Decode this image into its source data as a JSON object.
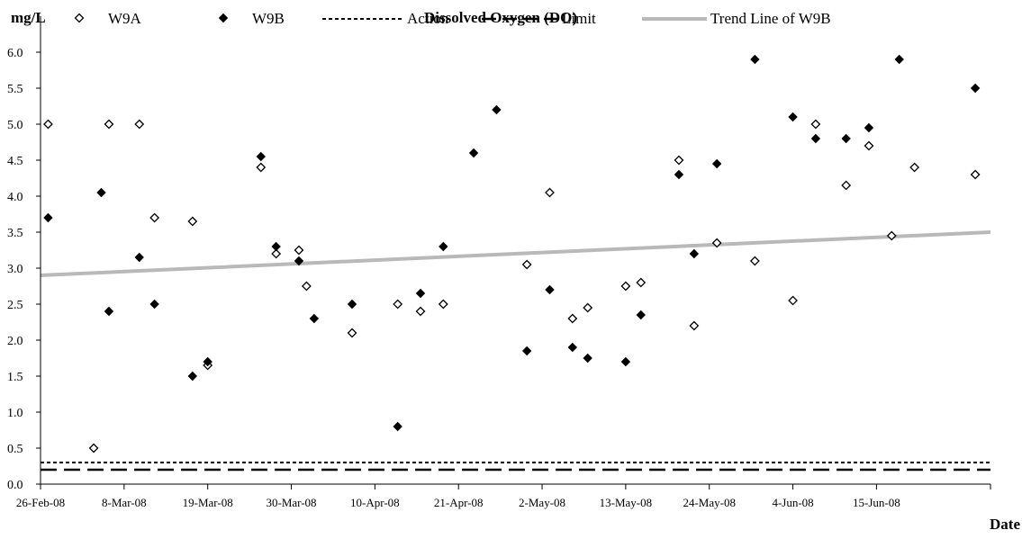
{
  "chart_data": {
    "type": "scatter",
    "title": "Dissolved Oxygen (DO)",
    "ylabel": "mg/L",
    "xlabel": "Date",
    "ylim": [
      0,
      6.5
    ],
    "xlim": [
      "2008-02-26",
      "2008-06-30"
    ],
    "y_ticks": [
      "0.0",
      "0.5",
      "1.0",
      "1.5",
      "2.0",
      "2.5",
      "3.0",
      "3.5",
      "4.0",
      "4.5",
      "5.0",
      "5.5",
      "6.0"
    ],
    "x_ticks": [
      {
        "date": "2008-02-26",
        "label": "26-Feb-08"
      },
      {
        "date": "2008-03-08",
        "label": "8-Mar-08"
      },
      {
        "date": "2008-03-19",
        "label": "19-Mar-08"
      },
      {
        "date": "2008-03-30",
        "label": "30-Mar-08"
      },
      {
        "date": "2008-04-10",
        "label": "10-Apr-08"
      },
      {
        "date": "2008-04-21",
        "label": "21-Apr-08"
      },
      {
        "date": "2008-05-02",
        "label": "2-May-08"
      },
      {
        "date": "2008-05-13",
        "label": "13-May-08"
      },
      {
        "date": "2008-05-24",
        "label": "24-May-08"
      },
      {
        "date": "2008-06-04",
        "label": "4-Jun-08"
      },
      {
        "date": "2008-06-15",
        "label": "15-Jun-08"
      }
    ],
    "legend": {
      "position": "top",
      "entries": [
        {
          "name": "W9A",
          "marker": "hollow-diamond"
        },
        {
          "name": "W9B",
          "marker": "filled-diamond"
        },
        {
          "name": "Action",
          "line": "dotted"
        },
        {
          "name": "Limit",
          "line": "dashed"
        },
        {
          "name": "Trend Line of W9B",
          "line": "gray-band"
        }
      ]
    },
    "grid": false,
    "series": [
      {
        "name": "W9A",
        "marker": "hollow-diamond",
        "points": [
          [
            "2008-02-27",
            5.0
          ],
          [
            "2008-03-04",
            0.5
          ],
          [
            "2008-03-06",
            5.0
          ],
          [
            "2008-03-10",
            5.0
          ],
          [
            "2008-03-12",
            3.7
          ],
          [
            "2008-03-17",
            3.65
          ],
          [
            "2008-03-19",
            1.65
          ],
          [
            "2008-03-26",
            4.4
          ],
          [
            "2008-03-28",
            3.2
          ],
          [
            "2008-03-31",
            3.25
          ],
          [
            "2008-04-01",
            2.75
          ],
          [
            "2008-04-07",
            2.1
          ],
          [
            "2008-04-13",
            2.5
          ],
          [
            "2008-04-16",
            2.4
          ],
          [
            "2008-04-19",
            2.5
          ],
          [
            "2008-04-30",
            3.05
          ],
          [
            "2008-05-03",
            4.05
          ],
          [
            "2008-05-06",
            2.3
          ],
          [
            "2008-05-08",
            2.45
          ],
          [
            "2008-05-13",
            2.75
          ],
          [
            "2008-05-15",
            2.8
          ],
          [
            "2008-05-20",
            4.5
          ],
          [
            "2008-05-22",
            2.2
          ],
          [
            "2008-05-25",
            3.35
          ],
          [
            "2008-05-30",
            3.1
          ],
          [
            "2008-06-04",
            2.55
          ],
          [
            "2008-06-07",
            5.0
          ],
          [
            "2008-06-11",
            4.15
          ],
          [
            "2008-06-14",
            4.7
          ],
          [
            "2008-06-17",
            3.45
          ],
          [
            "2008-06-20",
            4.4
          ],
          [
            "2008-06-28",
            4.3
          ]
        ]
      },
      {
        "name": "W9B",
        "marker": "filled-diamond",
        "points": [
          [
            "2008-02-27",
            3.7
          ],
          [
            "2008-03-05",
            4.05
          ],
          [
            "2008-03-06",
            2.4
          ],
          [
            "2008-03-10",
            3.15
          ],
          [
            "2008-03-12",
            2.5
          ],
          [
            "2008-03-17",
            1.5
          ],
          [
            "2008-03-19",
            1.7
          ],
          [
            "2008-03-26",
            4.55
          ],
          [
            "2008-03-28",
            3.3
          ],
          [
            "2008-03-31",
            3.1
          ],
          [
            "2008-04-02",
            2.3
          ],
          [
            "2008-04-07",
            2.5
          ],
          [
            "2008-04-13",
            0.8
          ],
          [
            "2008-04-16",
            2.65
          ],
          [
            "2008-04-19",
            3.3
          ],
          [
            "2008-04-23",
            4.6
          ],
          [
            "2008-04-26",
            5.2
          ],
          [
            "2008-04-30",
            1.85
          ],
          [
            "2008-05-03",
            2.7
          ],
          [
            "2008-05-06",
            1.9
          ],
          [
            "2008-05-08",
            1.75
          ],
          [
            "2008-05-13",
            1.7
          ],
          [
            "2008-05-15",
            2.35
          ],
          [
            "2008-05-20",
            4.3
          ],
          [
            "2008-05-22",
            3.2
          ],
          [
            "2008-05-25",
            4.45
          ],
          [
            "2008-05-30",
            5.9
          ],
          [
            "2008-06-04",
            5.1
          ],
          [
            "2008-06-07",
            4.8
          ],
          [
            "2008-06-11",
            4.8
          ],
          [
            "2008-06-14",
            4.95
          ],
          [
            "2008-06-18",
            5.9
          ],
          [
            "2008-06-28",
            5.5
          ]
        ]
      }
    ],
    "reference_lines": [
      {
        "name": "Action",
        "y": 0.3,
        "style": "dotted"
      },
      {
        "name": "Limit",
        "y": 0.2,
        "style": "dashed"
      }
    ],
    "trend_line": {
      "name": "Trend Line of W9B",
      "start": [
        "2008-02-26",
        2.9
      ],
      "end": [
        "2008-06-30",
        3.5
      ]
    }
  }
}
